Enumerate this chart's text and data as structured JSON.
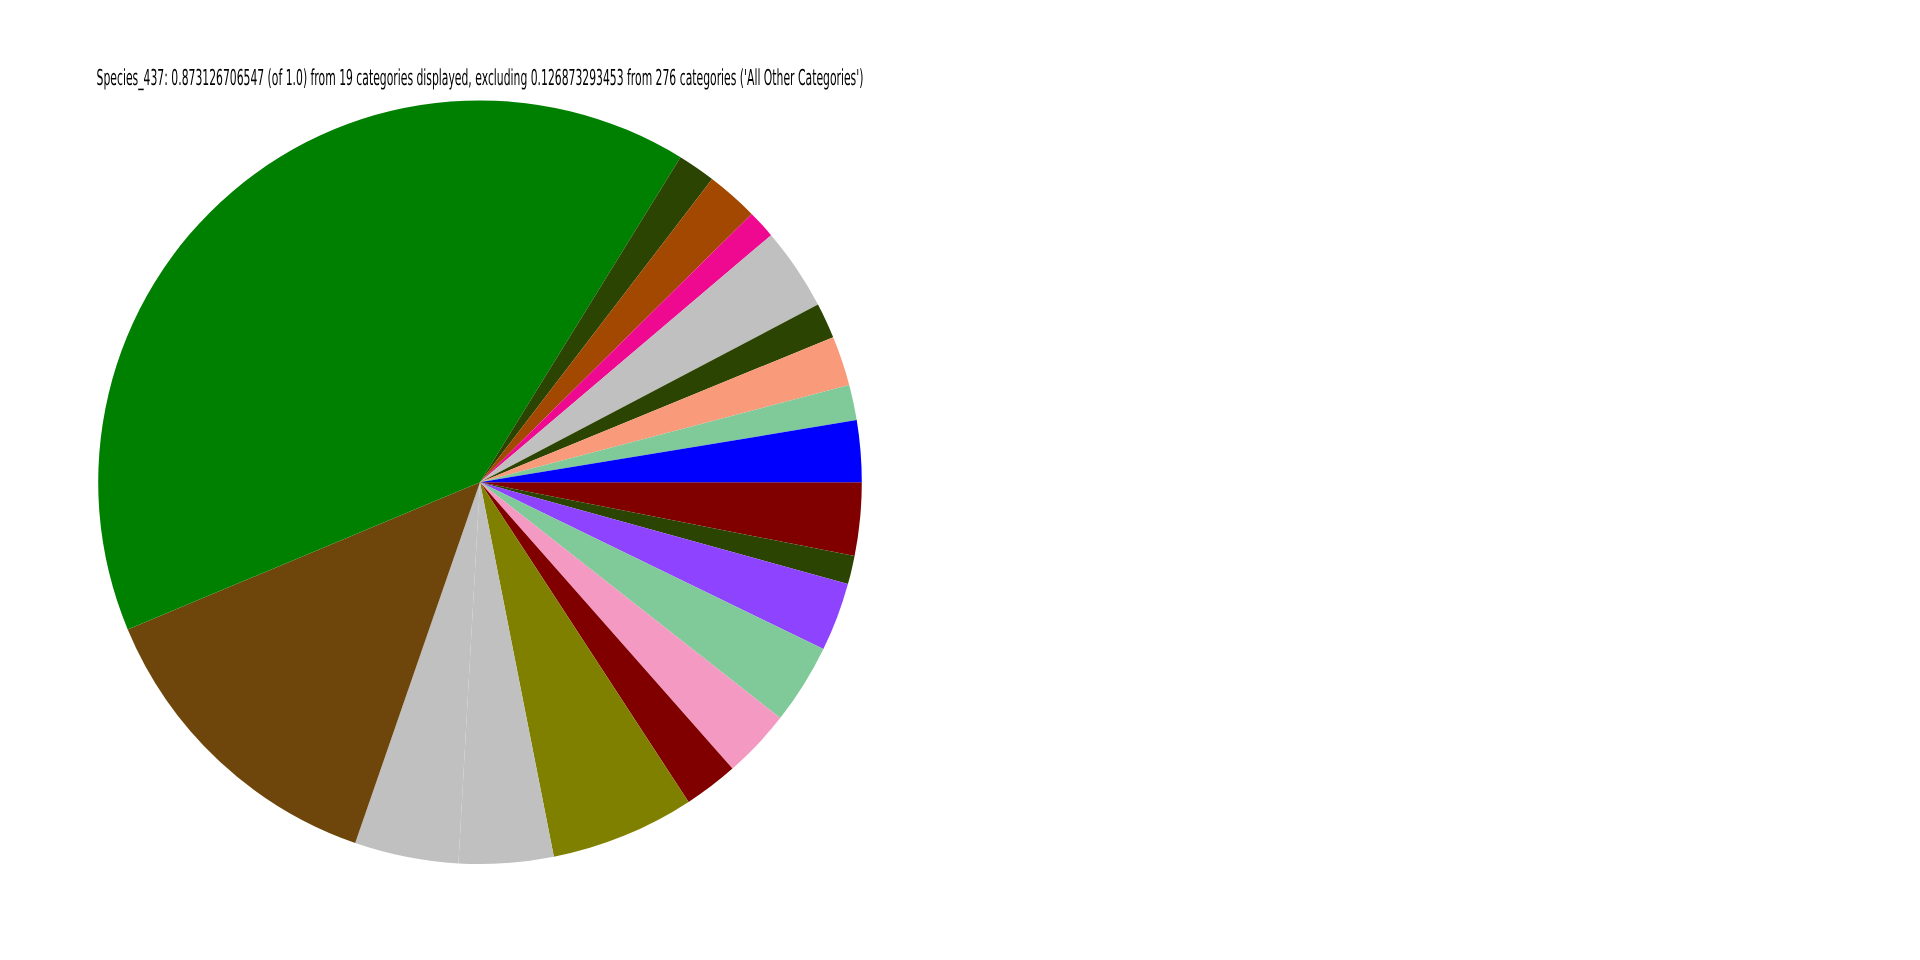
{
  "chart_data": {
    "type": "pie",
    "title": "Species_437: 0.873126706547 (of 1.0) from 19 categories displayed, excluding 0.126873293453 from 276 categories ('All Other Categories')",
    "categories": [
      null,
      null,
      null,
      null,
      null,
      null,
      null,
      null,
      null,
      null,
      null,
      null,
      null,
      null,
      null,
      null,
      null,
      null,
      null
    ],
    "values": [
      3.1,
      1.2,
      2.9,
      3.4,
      2.9,
      2.3,
      6.1,
      4.0,
      4.4,
      13.4,
      40.1,
      1.6,
      2.2,
      1.2,
      3.5,
      1.5,
      2.1,
      1.5,
      2.6
    ],
    "colors": [
      "#800000",
      "#2b4401",
      "#8e44ff",
      "#80c999",
      "#f49ac2",
      "#800000",
      "#808000",
      "#c0c0c0",
      "#c0c0c0",
      "#6e460c",
      "#008000",
      "#2b4401",
      "#a24800",
      "#ee0990",
      "#c0c0c0",
      "#2b4401",
      "#f99a7a",
      "#80c999",
      "#0000ff"
    ],
    "legend": false
  }
}
